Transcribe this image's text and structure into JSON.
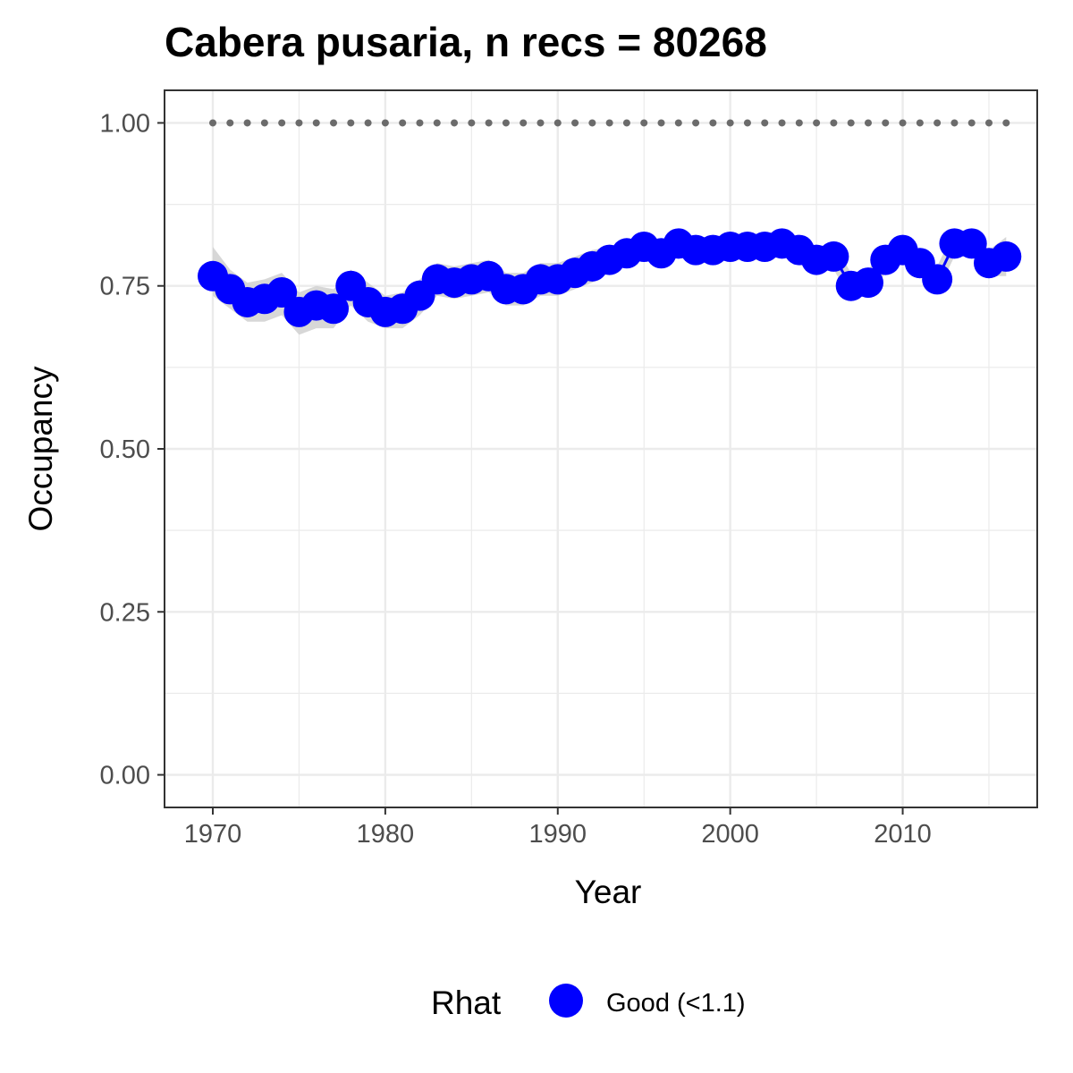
{
  "chart_data": {
    "type": "line",
    "title": "Cabera pusaria, n recs = 80268",
    "xlabel": "Year",
    "ylabel": "Occupancy",
    "xlim": [
      1967.2,
      2017.8
    ],
    "ylim": [
      -0.05,
      1.05
    ],
    "x_ticks": [
      1970,
      1980,
      1990,
      2000,
      2010
    ],
    "x_tick_labels": [
      "1970",
      "1980",
      "1990",
      "2000",
      "2010"
    ],
    "y_ticks": [
      0,
      0.25,
      0.5,
      0.75,
      1.0
    ],
    "y_tick_labels": [
      "0.00",
      "0.25",
      "0.50",
      "0.75",
      "1.00"
    ],
    "grid": true,
    "legend": {
      "title": "Rhat",
      "position": "bottom",
      "entries": [
        {
          "label": "Good (<1.1)",
          "color": "#0000ff"
        }
      ]
    },
    "colors": {
      "points": "#0000ff",
      "ribbon": "#d3d3d3",
      "reference": "#6b6b6b",
      "grid": "#ebebeb",
      "panel_border": "#333333"
    },
    "series": [
      {
        "name": "Good (<1.1)",
        "x": [
          1970,
          1971,
          1972,
          1973,
          1974,
          1975,
          1976,
          1977,
          1978,
          1979,
          1980,
          1981,
          1982,
          1983,
          1984,
          1985,
          1986,
          1987,
          1988,
          1989,
          1990,
          1991,
          1992,
          1993,
          1994,
          1995,
          1996,
          1997,
          1998,
          1999,
          2000,
          2001,
          2002,
          2003,
          2004,
          2005,
          2006,
          2007,
          2008,
          2009,
          2010,
          2011,
          2012,
          2013,
          2014,
          2015,
          2016
        ],
        "y": [
          0.765,
          0.745,
          0.725,
          0.73,
          0.74,
          0.71,
          0.72,
          0.715,
          0.75,
          0.725,
          0.71,
          0.715,
          0.735,
          0.76,
          0.755,
          0.76,
          0.765,
          0.745,
          0.745,
          0.76,
          0.76,
          0.77,
          0.78,
          0.79,
          0.8,
          0.81,
          0.8,
          0.815,
          0.805,
          0.805,
          0.81,
          0.81,
          0.81,
          0.815,
          0.805,
          0.79,
          0.795,
          0.75,
          0.755,
          0.79,
          0.805,
          0.785,
          0.76,
          0.815,
          0.815,
          0.785,
          0.795
        ],
        "lower": [
          0.735,
          0.715,
          0.695,
          0.695,
          0.705,
          0.675,
          0.685,
          0.685,
          0.72,
          0.695,
          0.685,
          0.685,
          0.705,
          0.735,
          0.73,
          0.735,
          0.74,
          0.72,
          0.72,
          0.735,
          0.735,
          0.745,
          0.755,
          0.77,
          0.78,
          0.79,
          0.78,
          0.795,
          0.785,
          0.785,
          0.79,
          0.79,
          0.79,
          0.795,
          0.785,
          0.77,
          0.775,
          0.73,
          0.735,
          0.77,
          0.785,
          0.765,
          0.74,
          0.795,
          0.795,
          0.765,
          0.765
        ],
        "upper": [
          0.81,
          0.775,
          0.755,
          0.76,
          0.77,
          0.74,
          0.75,
          0.745,
          0.775,
          0.755,
          0.735,
          0.74,
          0.76,
          0.785,
          0.78,
          0.785,
          0.79,
          0.77,
          0.77,
          0.785,
          0.785,
          0.795,
          0.805,
          0.81,
          0.82,
          0.83,
          0.82,
          0.835,
          0.825,
          0.825,
          0.83,
          0.83,
          0.83,
          0.835,
          0.825,
          0.81,
          0.815,
          0.77,
          0.775,
          0.81,
          0.825,
          0.805,
          0.78,
          0.835,
          0.835,
          0.805,
          0.825
        ]
      }
    ],
    "reference_line": {
      "y": 1.0,
      "style": "dotted"
    }
  }
}
